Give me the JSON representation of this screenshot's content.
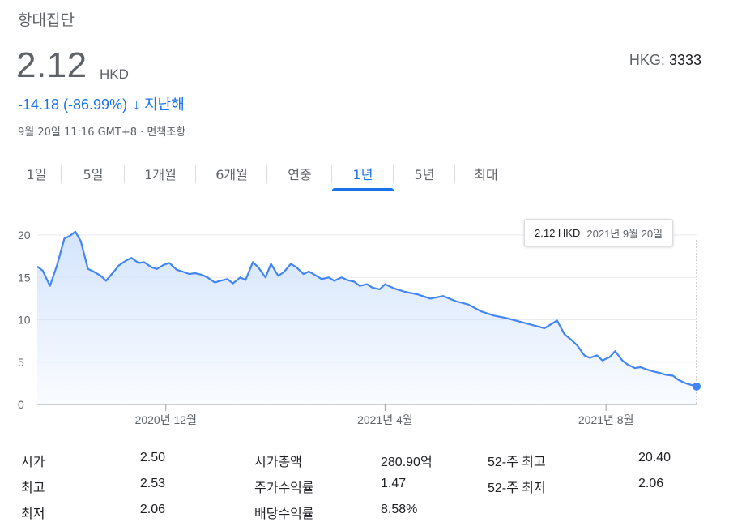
{
  "header": {
    "company": "항대집단",
    "price": "2.12",
    "currency": "HKD",
    "exchange_label": "HKG:",
    "ticker": "3333",
    "change": "-14.18 (-86.99%)",
    "change_arrow": "↓",
    "change_period": "지난해",
    "timestamp": "9월 20일 11:16 GMT+8 · ",
    "disclaimer": "면책조항"
  },
  "colors": {
    "accent": "#1a73e8",
    "line": "#4285f4",
    "fill_top": "#d2e3fc"
  },
  "tabs": [
    {
      "label": "1일"
    },
    {
      "label": "5일"
    },
    {
      "label": "1개월"
    },
    {
      "label": "6개월"
    },
    {
      "label": "연중"
    },
    {
      "label": "1년",
      "active": true
    },
    {
      "label": "5년"
    },
    {
      "label": "최대"
    }
  ],
  "tooltip": {
    "price": "2.12 HKD",
    "date": "2021년 9월 20일"
  },
  "chart_data": {
    "type": "area",
    "title": "",
    "xlabel": "",
    "ylabel": "",
    "ylim": [
      0,
      21.5
    ],
    "y_ticks": [
      0,
      5,
      10,
      15,
      20
    ],
    "x_domain": [
      "2020-09-21",
      "2021-09-20"
    ],
    "x_ticks": [
      {
        "date": "2020-12-01",
        "label": "2020년 12월"
      },
      {
        "date": "2021-04-01",
        "label": "2021년 4월"
      },
      {
        "date": "2021-08-01",
        "label": "2021년 8월"
      }
    ],
    "grid": true,
    "series": [
      {
        "x": [
          "2020-09-21",
          "2020-09-24",
          "2020-09-28",
          "2020-10-02",
          "2020-10-06",
          "2020-10-09",
          "2020-10-12",
          "2020-10-15",
          "2020-10-19",
          "2020-10-22",
          "2020-10-26",
          "2020-10-29",
          "2020-11-02",
          "2020-11-05",
          "2020-11-09",
          "2020-11-12",
          "2020-11-16",
          "2020-11-19",
          "2020-11-23",
          "2020-11-26",
          "2020-11-30",
          "2020-12-03",
          "2020-12-07",
          "2020-12-10",
          "2020-12-14",
          "2020-12-17",
          "2020-12-21",
          "2020-12-24",
          "2020-12-28",
          "2020-12-31",
          "2021-01-04",
          "2021-01-07",
          "2021-01-11",
          "2021-01-14",
          "2021-01-18",
          "2021-01-21",
          "2021-01-25",
          "2021-01-28",
          "2021-02-01",
          "2021-02-04",
          "2021-02-08",
          "2021-02-11",
          "2021-02-15",
          "2021-02-18",
          "2021-02-22",
          "2021-02-25",
          "2021-03-01",
          "2021-03-04",
          "2021-03-08",
          "2021-03-11",
          "2021-03-15",
          "2021-03-18",
          "2021-03-22",
          "2021-03-25",
          "2021-03-29",
          "2021-04-01",
          "2021-04-06",
          "2021-04-12",
          "2021-04-19",
          "2021-04-26",
          "2021-05-03",
          "2021-05-10",
          "2021-05-17",
          "2021-05-24",
          "2021-05-31",
          "2021-06-07",
          "2021-06-14",
          "2021-06-21",
          "2021-06-28",
          "2021-07-05",
          "2021-07-09",
          "2021-07-13",
          "2021-07-16",
          "2021-07-20",
          "2021-07-23",
          "2021-07-27",
          "2021-07-30",
          "2021-08-03",
          "2021-08-06",
          "2021-08-10",
          "2021-08-13",
          "2021-08-17",
          "2021-08-20",
          "2021-08-24",
          "2021-08-27",
          "2021-08-31",
          "2021-09-03",
          "2021-09-07",
          "2021-09-10",
          "2021-09-14",
          "2021-09-20"
        ],
        "y": [
          16.3,
          15.8,
          14.0,
          16.5,
          19.6,
          19.9,
          20.4,
          19.3,
          16.0,
          15.7,
          15.2,
          14.6,
          15.6,
          16.4,
          17.0,
          17.3,
          16.7,
          16.8,
          16.2,
          16.0,
          16.5,
          16.7,
          15.9,
          15.7,
          15.4,
          15.5,
          15.3,
          15.0,
          14.4,
          14.6,
          14.8,
          14.3,
          15.0,
          14.7,
          16.8,
          16.2,
          15.0,
          16.6,
          15.2,
          15.6,
          16.6,
          16.2,
          15.4,
          15.7,
          15.2,
          14.8,
          15.0,
          14.6,
          15.0,
          14.7,
          14.5,
          14.0,
          14.2,
          13.8,
          13.6,
          14.2,
          13.7,
          13.3,
          13.0,
          12.5,
          12.8,
          12.2,
          11.8,
          11.0,
          10.5,
          10.2,
          9.8,
          9.4,
          9.0,
          9.9,
          8.3,
          7.6,
          7.0,
          5.8,
          5.5,
          5.8,
          5.2,
          5.6,
          6.3,
          5.2,
          4.7,
          4.3,
          4.4,
          4.1,
          3.9,
          3.7,
          3.5,
          3.4,
          2.9,
          2.5,
          2.12
        ]
      }
    ]
  },
  "stats": {
    "rows": [
      [
        {
          "label": "시가",
          "value": "2.50"
        },
        {
          "label": "시가총액",
          "value": "280.90억"
        },
        {
          "label": "52-주 최고",
          "value": "20.40"
        }
      ],
      [
        {
          "label": "최고",
          "value": "2.53"
        },
        {
          "label": "주가수익률",
          "value": "1.47"
        },
        {
          "label": "52-주 최저",
          "value": "2.06"
        }
      ],
      [
        {
          "label": "최저",
          "value": "2.06"
        },
        {
          "label": "배당수익률",
          "value": "8.58%"
        }
      ]
    ]
  }
}
